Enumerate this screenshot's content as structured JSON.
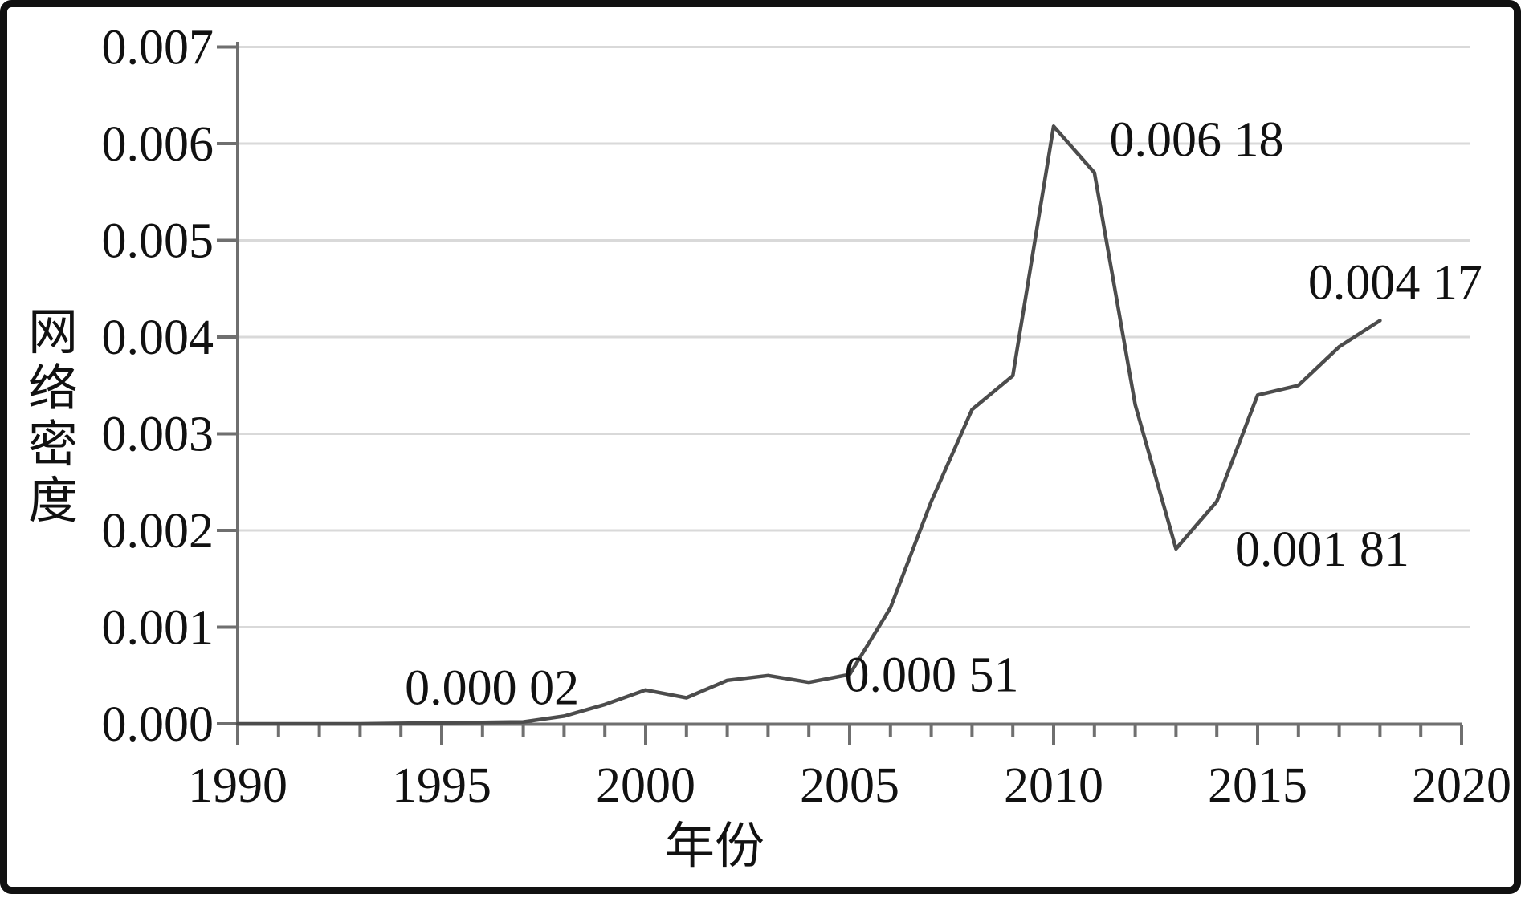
{
  "chart_data": {
    "type": "line",
    "title": "",
    "xlabel": "年份",
    "ylabel": "网络密度",
    "xlim": [
      1990,
      2020
    ],
    "ylim": [
      0,
      0.007
    ],
    "grid": "horizontal",
    "legend": "none",
    "x": [
      1990,
      1991,
      1992,
      1993,
      1994,
      1995,
      1996,
      1997,
      1998,
      1999,
      2000,
      2001,
      2002,
      2003,
      2004,
      2005,
      2006,
      2007,
      2008,
      2009,
      2010,
      2011,
      2012,
      2013,
      2014,
      2015,
      2016,
      2017,
      2018
    ],
    "values": [
      0,
      0,
      0,
      0,
      5e-06,
      1e-05,
      1.5e-05,
      2e-05,
      8e-05,
      0.0002,
      0.00035,
      0.00027,
      0.00045,
      0.0005,
      0.00043,
      0.00051,
      0.0012,
      0.0023,
      0.00325,
      0.0036,
      0.00618,
      0.0057,
      0.0033,
      0.00181,
      0.0023,
      0.0034,
      0.0035,
      0.0039,
      0.00417
    ],
    "x_ticks": [
      1990,
      1995,
      2000,
      2005,
      2010,
      2015,
      2020
    ],
    "y_ticks": [
      {
        "value": 0.0,
        "label": "0.000"
      },
      {
        "value": 0.001,
        "label": "0.001"
      },
      {
        "value": 0.002,
        "label": "0.002"
      },
      {
        "value": 0.003,
        "label": "0.003"
      },
      {
        "value": 0.004,
        "label": "0.004"
      },
      {
        "value": 0.005,
        "label": "0.005"
      },
      {
        "value": 0.006,
        "label": "0.006"
      },
      {
        "value": 0.007,
        "label": "0.007"
      }
    ],
    "annotations": [
      {
        "text": "0.000 02",
        "year": 1997,
        "value": 2e-05
      },
      {
        "text": "0.000 51",
        "year": 2005,
        "value": 0.00051
      },
      {
        "text": "0.006 18",
        "year": 2010,
        "value": 0.00618
      },
      {
        "text": "0.001 81",
        "year": 2013,
        "value": 0.00181
      },
      {
        "text": "0.004 17",
        "year": 2018,
        "value": 0.00417
      }
    ],
    "colors": {
      "line": "#4c4c4c",
      "grid": "#d9d9d9",
      "axis": "#6f6f6f",
      "text": "#111111",
      "border": "#111111",
      "background": "#ffffff"
    }
  }
}
